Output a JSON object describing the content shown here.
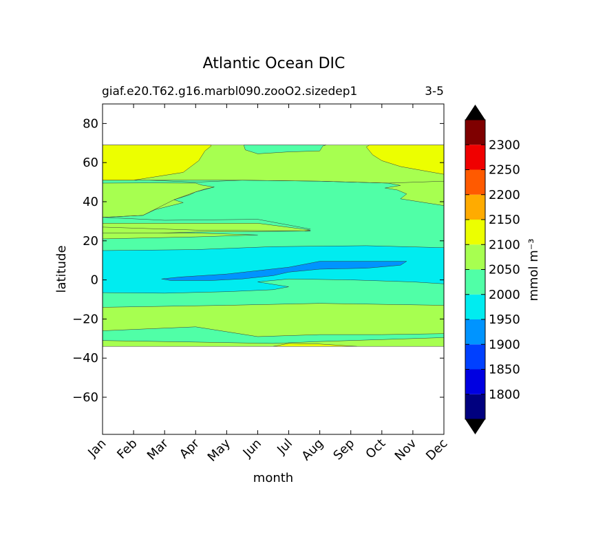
{
  "chart_data": {
    "type": "contourf",
    "title": "Atlantic Ocean DIC",
    "subtitle_left": "giaf.e20.T62.g16.marbl090.zooO2.sizedep1",
    "subtitle_right": "3-5",
    "xlabel": "month",
    "ylabel": "latitude",
    "x_ticks": [
      "Jan",
      "Feb",
      "Mar",
      "Apr",
      "May",
      "Jun",
      "Jul",
      "Aug",
      "Sep",
      "Oct",
      "Nov",
      "Dec"
    ],
    "y_ticks": [
      80,
      60,
      40,
      20,
      0,
      -20,
      -40,
      -60
    ],
    "y_tick_labels": [
      "80",
      "60",
      "40",
      "20",
      "0",
      "−20",
      "−40",
      "−60"
    ],
    "ylim": [
      -79,
      90
    ],
    "data_lat_range": [
      -34,
      69
    ],
    "colorbar": {
      "label": "mmol m⁻³",
      "levels": [
        1750,
        1800,
        1850,
        1900,
        1950,
        2000,
        2050,
        2100,
        2150,
        2200,
        2250,
        2300,
        2350
      ],
      "tick_labels": [
        "1800",
        "1850",
        "1900",
        "1950",
        "2000",
        "2050",
        "2100",
        "2150",
        "2200",
        "2250",
        "2300"
      ],
      "colors": [
        "#00007f",
        "#0000e1",
        "#0040ff",
        "#0094ff",
        "#00ecf0",
        "#50ffa7",
        "#a7ff50",
        "#ecff00",
        "#ffab00",
        "#ff5a00",
        "#f00000",
        "#7f0000"
      ],
      "under_color": "#000000",
      "over_color": "#000000"
    },
    "regions": [
      {
        "name": "2050-2100",
        "color": "#a7ff50",
        "points": [
          [
            0,
            69
          ],
          [
            11,
            69
          ],
          [
            11,
            -34
          ],
          [
            0,
            -34
          ]
        ]
      },
      {
        "name": "2000-2050",
        "color": "#50ffa7",
        "points": [
          [
            0,
            49.5
          ],
          [
            1.5,
            49.6
          ],
          [
            3,
            49.5
          ],
          [
            3.2,
            48.5
          ],
          [
            3.6,
            47.5
          ],
          [
            3.3,
            46.5
          ],
          [
            3,
            45
          ],
          [
            2.8,
            43.5
          ],
          [
            2.3,
            41
          ],
          [
            2.6,
            39.5
          ],
          [
            1.7,
            36
          ],
          [
            1.3,
            33
          ],
          [
            0,
            32
          ],
          [
            0,
            28
          ],
          [
            3,
            28
          ],
          [
            6.7,
            25
          ],
          [
            3,
            24.5
          ],
          [
            0,
            23
          ],
          [
            0,
            -31
          ],
          [
            3,
            -31.8
          ],
          [
            5.5,
            -32.5
          ],
          [
            7,
            -31.5
          ],
          [
            11,
            -29.5
          ],
          [
            11,
            38
          ],
          [
            9.6,
            41.5
          ],
          [
            9.8,
            44
          ],
          [
            9.5,
            46
          ],
          [
            9.1,
            47
          ],
          [
            9.6,
            48.3
          ],
          [
            9.2,
            49.5
          ],
          [
            7,
            50.5
          ],
          [
            4.5,
            51
          ],
          [
            0,
            51
          ]
        ]
      },
      {
        "name": "2000-2050-north",
        "color": "#50ffa7",
        "points": [
          [
            4.55,
            69
          ],
          [
            7.2,
            69
          ],
          [
            7.1,
            68.5
          ],
          [
            7,
            66
          ],
          [
            6,
            65.5
          ],
          [
            5,
            64.5
          ],
          [
            4.6,
            66.5
          ]
        ]
      },
      {
        "name": "2100-2150-nw",
        "color": "#ecff00",
        "points": [
          [
            0,
            69
          ],
          [
            3.5,
            69
          ],
          [
            3.5,
            68.5
          ],
          [
            3.3,
            66
          ],
          [
            3.1,
            61
          ],
          [
            2.6,
            55
          ],
          [
            1,
            51
          ],
          [
            0,
            51
          ]
        ]
      },
      {
        "name": "2100-2150-ne",
        "color": "#ecff00",
        "points": [
          [
            8.6,
            69
          ],
          [
            11,
            69
          ],
          [
            11,
            54
          ],
          [
            10.3,
            56
          ],
          [
            9.6,
            58
          ],
          [
            9,
            61
          ],
          [
            8.7,
            64
          ],
          [
            8.5,
            68
          ]
        ]
      },
      {
        "name": "2050-2100-strip-1",
        "color": "#a7ff50",
        "points": [
          [
            0,
            29
          ],
          [
            5,
            29
          ],
          [
            6.7,
            25.5
          ],
          [
            6.5,
            25
          ],
          [
            3,
            25.5
          ],
          [
            0,
            27
          ]
        ]
      },
      {
        "name": "2050-2100-strip-2",
        "color": "#a7ff50",
        "points": [
          [
            0,
            24
          ],
          [
            3,
            24
          ],
          [
            5,
            23
          ],
          [
            3,
            22
          ],
          [
            0,
            21
          ]
        ]
      },
      {
        "name": "2050-2100-south",
        "color": "#a7ff50",
        "points": [
          [
            0,
            -14
          ],
          [
            4,
            -13
          ],
          [
            7,
            -12
          ],
          [
            11,
            -13
          ],
          [
            11,
            -27.5
          ],
          [
            9,
            -28
          ],
          [
            7,
            -28
          ],
          [
            5,
            -29
          ],
          [
            3,
            -24
          ],
          [
            0,
            -26
          ]
        ]
      },
      {
        "name": "2100-2150-south",
        "color": "#ecff00",
        "points": [
          [
            5.5,
            -34
          ],
          [
            6,
            -32.5
          ],
          [
            7,
            -32.8
          ],
          [
            8.2,
            -34
          ]
        ]
      },
      {
        "name": "1950-2000",
        "color": "#00ecf0",
        "points": [
          [
            0,
            15
          ],
          [
            3,
            15.5
          ],
          [
            5.5,
            17
          ],
          [
            8.5,
            17.5
          ],
          [
            11,
            16.5
          ],
          [
            11,
            -2
          ],
          [
            10,
            -1
          ],
          [
            8,
            0
          ],
          [
            6,
            0.5
          ],
          [
            5,
            -1
          ],
          [
            6,
            -3.5
          ],
          [
            5.5,
            -5
          ],
          [
            4,
            -6
          ],
          [
            2,
            -6.8
          ],
          [
            0,
            -6.5
          ]
        ]
      },
      {
        "name": "1900-1950",
        "color": "#0094ff",
        "points": [
          [
            1.9,
            0.5
          ],
          [
            2.5,
            1.5
          ],
          [
            4,
            3
          ],
          [
            6,
            6.5
          ],
          [
            7,
            9.5
          ],
          [
            8,
            9.5
          ],
          [
            9.8,
            9.5
          ],
          [
            9.6,
            7.5
          ],
          [
            8.5,
            6
          ],
          [
            7,
            5.5
          ],
          [
            6,
            4
          ],
          [
            5.5,
            2.2
          ],
          [
            4.5,
            0.5
          ],
          [
            3.5,
            -0.3
          ],
          [
            2.2,
            -0.3
          ]
        ]
      }
    ],
    "contour_lines": [
      {
        "name": "line-2050-2100-north-edge",
        "points": [
          [
            0,
            51
          ],
          [
            1.5,
            51
          ],
          [
            3,
            50
          ],
          [
            4.5,
            51
          ],
          [
            7,
            50.5
          ],
          [
            9.2,
            49.5
          ],
          [
            11,
            50.5
          ]
        ]
      },
      {
        "name": "line-2000-edge-north",
        "points": [
          [
            0,
            32
          ],
          [
            1.3,
            33
          ],
          [
            2.3,
            41
          ],
          [
            3,
            45
          ],
          [
            3.6,
            47.5
          ]
        ]
      },
      {
        "name": "line-2050-tail",
        "points": [
          [
            0,
            32
          ],
          [
            2,
            30.5
          ],
          [
            5,
            31
          ],
          [
            6.7,
            26
          ]
        ]
      }
    ]
  }
}
